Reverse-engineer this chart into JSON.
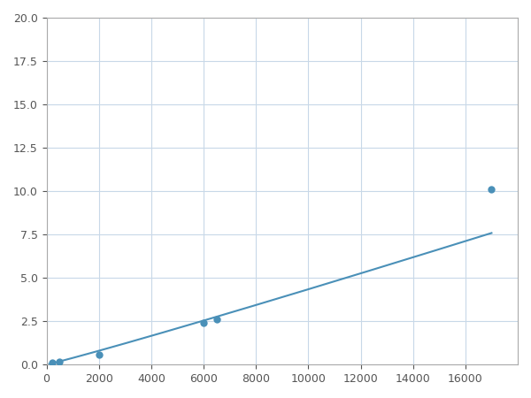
{
  "x": [
    200,
    500,
    2000,
    6000,
    6500,
    17000
  ],
  "y": [
    0.1,
    0.15,
    0.6,
    2.4,
    2.6,
    10.1
  ],
  "line_color": "#4a90b8",
  "marker_color": "#4a90b8",
  "marker_size": 6,
  "xlim": [
    0,
    18000
  ],
  "ylim": [
    0,
    20
  ],
  "xticks": [
    0,
    2000,
    4000,
    6000,
    8000,
    10000,
    12000,
    14000,
    16000
  ],
  "yticks": [
    0.0,
    2.5,
    5.0,
    7.5,
    10.0,
    12.5,
    15.0,
    17.5,
    20.0
  ],
  "grid_color": "#c8d8e8",
  "background_color": "#ffffff",
  "fig_width": 6.0,
  "fig_height": 4.5,
  "dpi": 100
}
